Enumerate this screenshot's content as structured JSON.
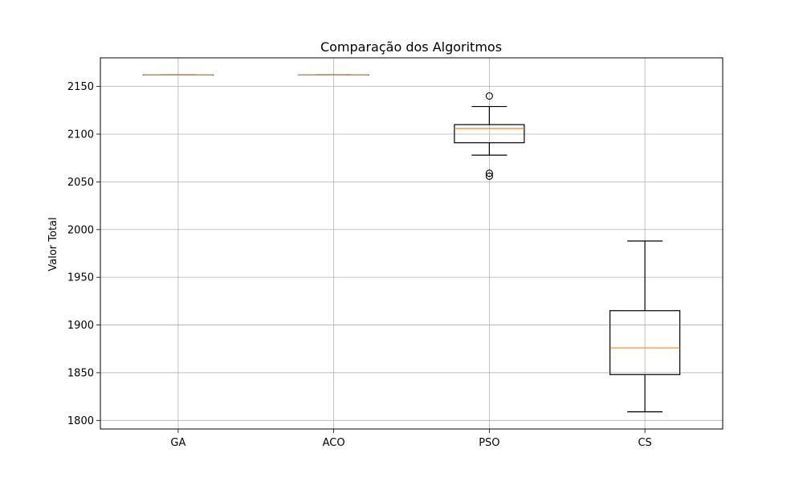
{
  "chart_data": {
    "type": "boxplot",
    "title": "Comparação dos Algoritmos",
    "xlabel": "",
    "ylabel": "Valor Total",
    "ylim": [
      1791,
      2180
    ],
    "yticks": [
      1800,
      1850,
      1900,
      1950,
      2000,
      2050,
      2100,
      2150
    ],
    "grid": true,
    "categories": [
      "GA",
      "ACO",
      "PSO",
      "CS"
    ],
    "boxes": [
      {
        "label": "GA",
        "whisker_low": 2162,
        "q1": 2162,
        "median": 2162,
        "q3": 2162,
        "whisker_high": 2162,
        "outliers": []
      },
      {
        "label": "ACO",
        "whisker_low": 2162,
        "q1": 2162,
        "median": 2162,
        "q3": 2162,
        "whisker_high": 2162,
        "outliers": []
      },
      {
        "label": "PSO",
        "whisker_low": 2078,
        "q1": 2091,
        "median": 2106,
        "q3": 2110,
        "whisker_high": 2129,
        "outliers": [
          2140,
          2059,
          2056
        ]
      },
      {
        "label": "CS",
        "whisker_low": 1809,
        "q1": 1848,
        "median": 1876,
        "q3": 1915,
        "whisker_high": 1988,
        "outliers": []
      }
    ],
    "colors": {
      "box": "#000000",
      "median": "#ff7f0e",
      "grid": "#b0b0b0",
      "frame": "#000000"
    }
  }
}
